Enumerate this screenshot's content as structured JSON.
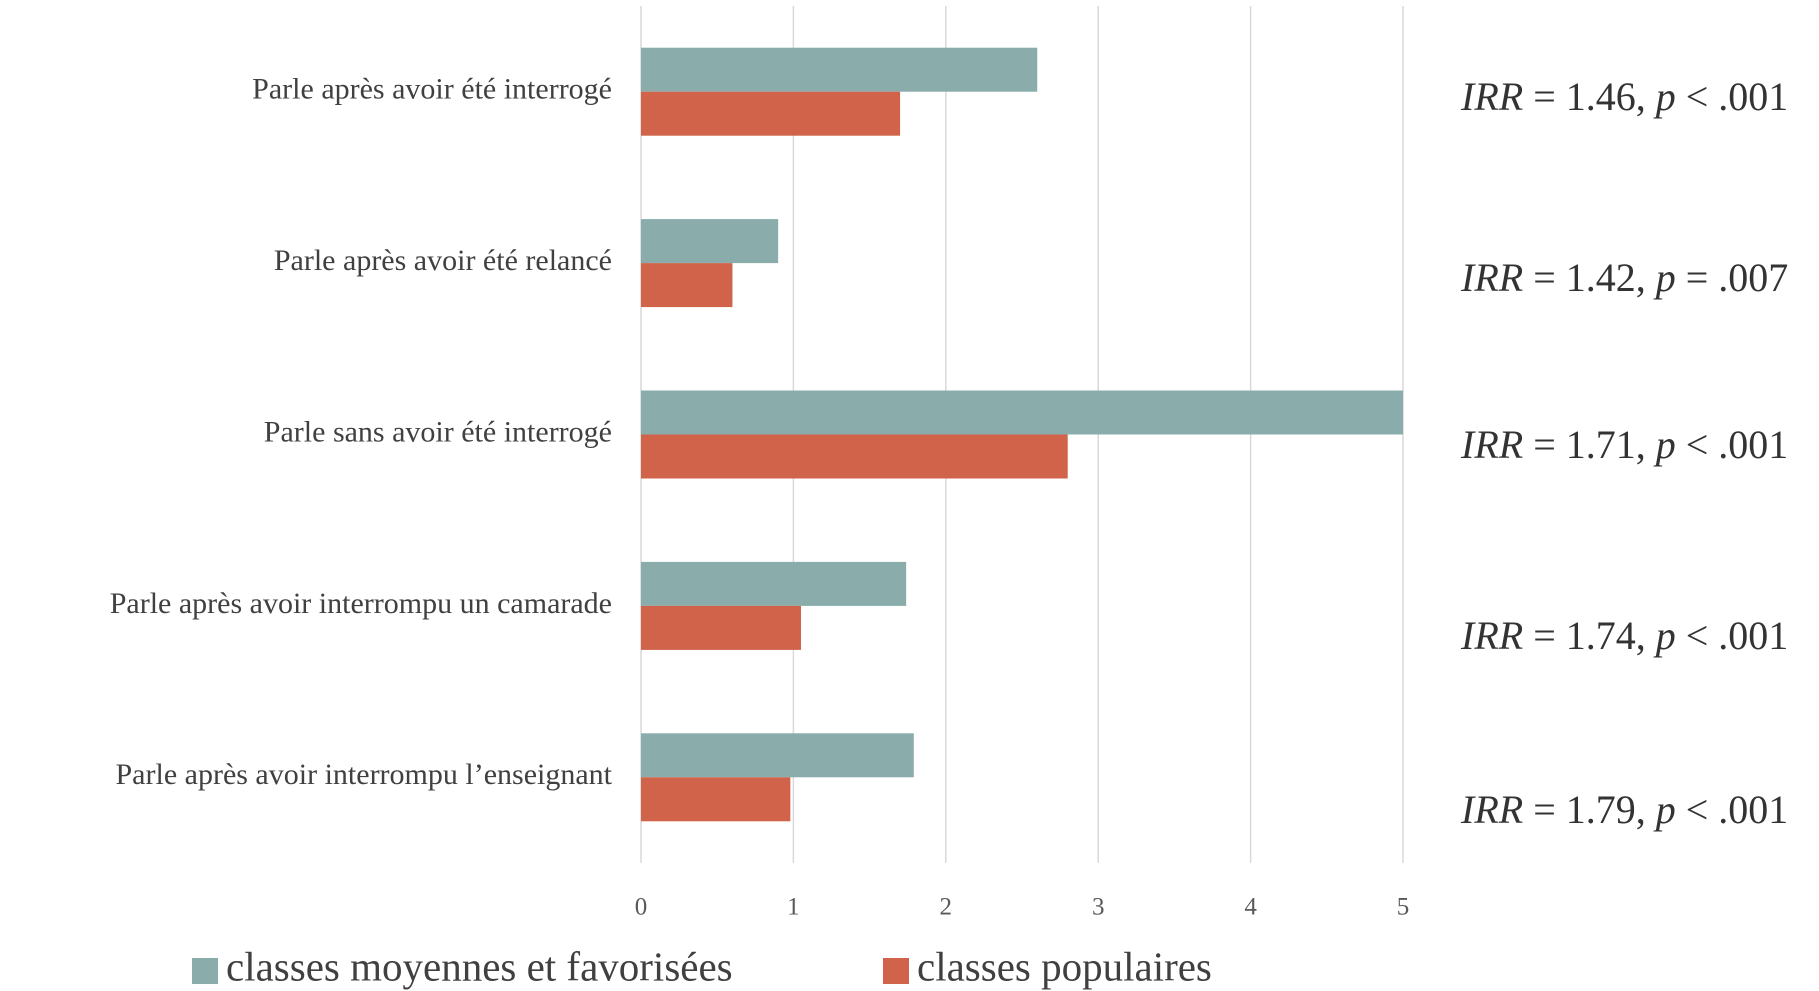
{
  "chart_data": {
    "type": "barh",
    "categories": [
      "Parle après avoir été interrogé",
      "Parle après avoir été relancé",
      "Parle sans avoir été interrogé",
      "Parle après avoir interrompu un camarade",
      "Parle après avoir interrompu l’enseignant"
    ],
    "series": [
      {
        "name": "classes moyennes et favorisées",
        "color": "#8aacab",
        "values": [
          2.6,
          0.9,
          5.0,
          1.74,
          1.79
        ]
      },
      {
        "name": "classes populaires",
        "color": "#d0634a",
        "values": [
          1.7,
          0.6,
          2.8,
          1.05,
          0.98
        ]
      }
    ],
    "xlim": [
      0,
      5
    ],
    "xticks": [
      0,
      1,
      2,
      3,
      4,
      5
    ],
    "grid": true,
    "legend": "bottom",
    "annotations": [
      [
        "IRR",
        " = 1.46, ",
        "p",
        " < .001"
      ],
      [
        "IRR",
        " = 1.42, ",
        "p",
        " = .007"
      ],
      [
        "IRR",
        " = 1.71, ",
        "p",
        " < .001"
      ],
      [
        "IRR",
        " = 1.74, ",
        "p",
        " < .001"
      ],
      [
        "IRR",
        " = 1.79, ",
        "p",
        " < .001"
      ]
    ]
  }
}
